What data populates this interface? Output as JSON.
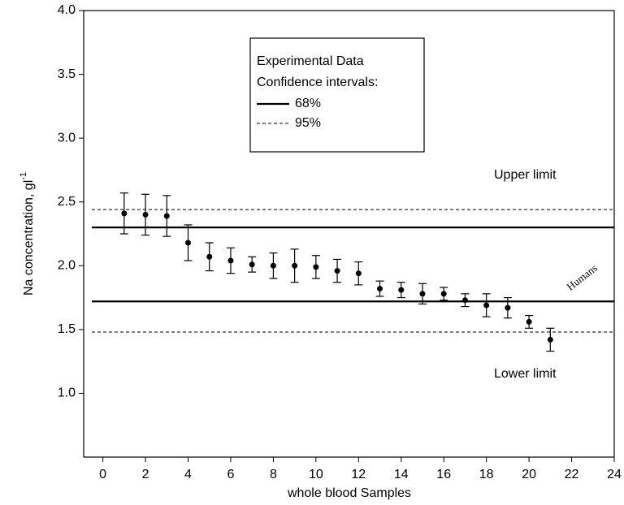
{
  "chart_data": {
    "type": "scatter",
    "x_label": "whole blood Samples",
    "y_label": "Na concentration, gl",
    "y_label_sup": "-1",
    "x": [
      1,
      2,
      3,
      4,
      5,
      6,
      7,
      8,
      9,
      10,
      11,
      12,
      13,
      14,
      15,
      16,
      17,
      18,
      19,
      20,
      21
    ],
    "series": [
      {
        "name": "Experimental Data",
        "color": "#000000",
        "values": [
          2.41,
          2.4,
          2.39,
          2.18,
          2.07,
          2.04,
          2.01,
          2.0,
          2.0,
          1.99,
          1.96,
          1.94,
          1.82,
          1.81,
          1.78,
          1.78,
          1.73,
          1.69,
          1.67,
          1.56,
          1.42
        ],
        "errors": [
          0.16,
          0.16,
          0.16,
          0.14,
          0.11,
          0.1,
          0.06,
          0.1,
          0.13,
          0.09,
          0.09,
          0.09,
          0.06,
          0.06,
          0.08,
          0.05,
          0.05,
          0.09,
          0.08,
          0.05,
          0.09
        ]
      }
    ],
    "legend_heading": "Confidence intervals:",
    "confidence_intervals": [
      {
        "name": "68%",
        "lower": 1.72,
        "upper": 2.3,
        "style": "solid"
      },
      {
        "name": "95%",
        "lower": 1.48,
        "upper": 2.44,
        "style": "dashed"
      }
    ],
    "annotations": [
      "Upper limit",
      "Lower limit",
      "Humans"
    ],
    "xlim": [
      -0.9,
      24
    ],
    "ylim": [
      0.5,
      4.0
    ],
    "xticks": [
      0,
      2,
      4,
      6,
      8,
      10,
      12,
      14,
      16,
      18,
      20,
      22,
      24
    ],
    "yticks": [
      {
        "value": 1.0,
        "label": "1.0"
      },
      {
        "value": 1.5,
        "label": "1.5"
      },
      {
        "value": 2.0,
        "label": "2.0"
      },
      {
        "value": 2.5,
        "label": "2.5"
      },
      {
        "value": 3.0,
        "label": "3.0"
      },
      {
        "value": 3.5,
        "label": "3.5"
      },
      {
        "value": 4.0,
        "label": "4.0"
      }
    ],
    "legend_position": "upper center"
  }
}
